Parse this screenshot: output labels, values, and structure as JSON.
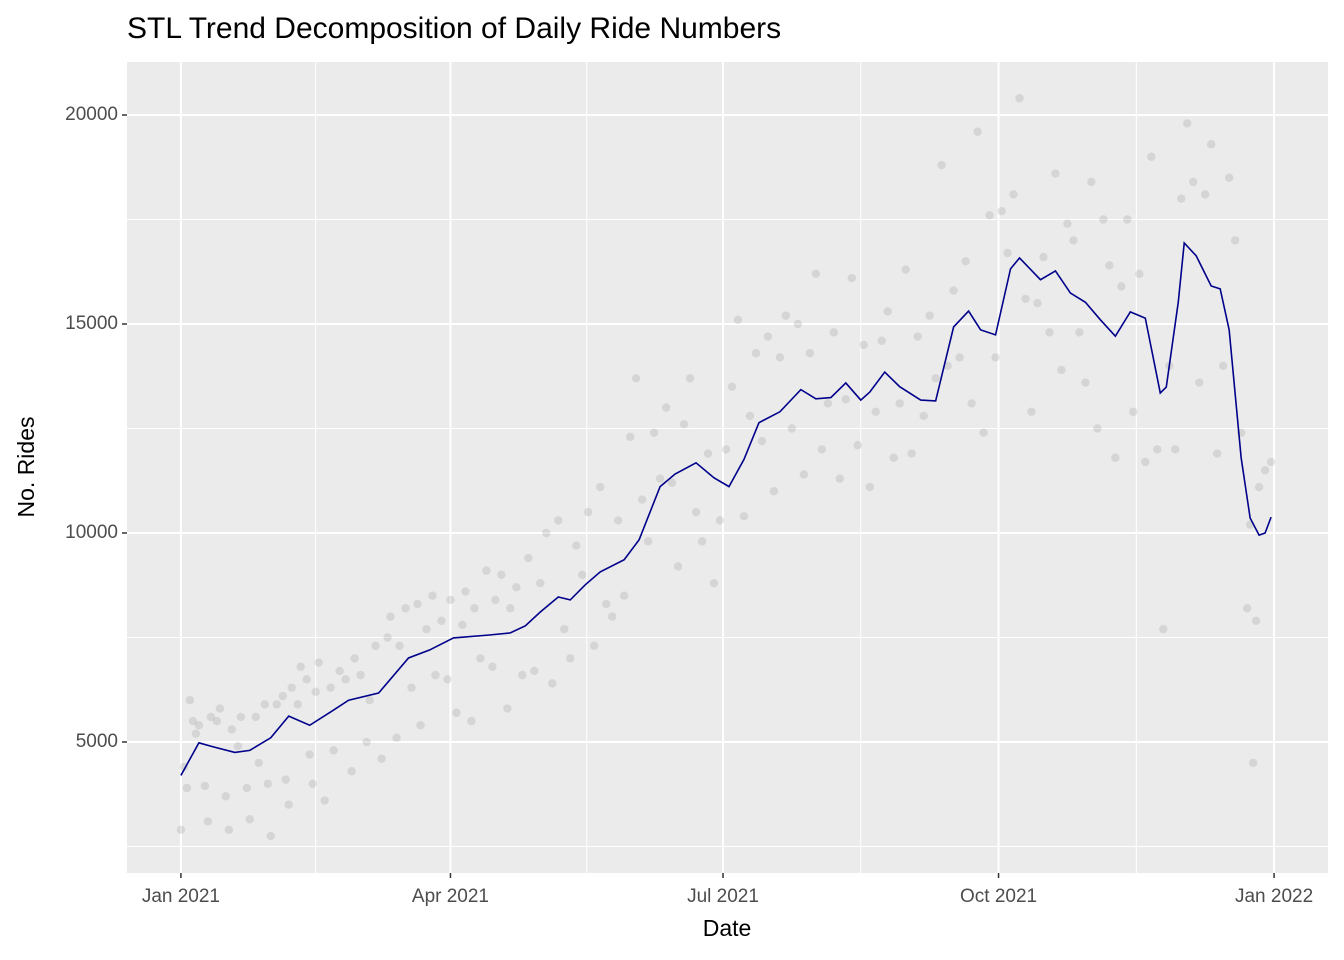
{
  "chart_data": {
    "type": "line",
    "title": "STL Trend Decomposition of Daily Ride Numbers",
    "x_label": "Date",
    "y_label": "No. Rides",
    "xlim": [
      -18,
      383
    ],
    "ylim": [
      1866,
      21268
    ],
    "xticks": [
      {
        "value": 0,
        "label": "Jan 2021"
      },
      {
        "value": 90,
        "label": "Apr 2021"
      },
      {
        "value": 181,
        "label": "Jul 2021"
      },
      {
        "value": 273,
        "label": "Oct 2021"
      },
      {
        "value": 365,
        "label": "Jan 2022"
      }
    ],
    "yticks": [
      5000,
      10000,
      15000,
      20000
    ],
    "grid": true,
    "series": [
      {
        "type": "scatter",
        "color": "#7f7f7f",
        "x": [
          0,
          1,
          2,
          3,
          4,
          5,
          6,
          8,
          9,
          10,
          12,
          13,
          15,
          16,
          17,
          19,
          20,
          22,
          23,
          25,
          26,
          28,
          29,
          30,
          32,
          34,
          35,
          36,
          37,
          39,
          40,
          42,
          43,
          44,
          45,
          46,
          48,
          50,
          51,
          53,
          55,
          57,
          58,
          60,
          62,
          63,
          65,
          67,
          69,
          70,
          72,
          73,
          75,
          77,
          79,
          80,
          82,
          84,
          85,
          87,
          89,
          90,
          92,
          94,
          95,
          97,
          98,
          100,
          102,
          104,
          105,
          107,
          109,
          110,
          112,
          114,
          116,
          118,
          120,
          122,
          124,
          126,
          128,
          130,
          132,
          134,
          136,
          138,
          140,
          142,
          144,
          146,
          148,
          150,
          152,
          154,
          156,
          158,
          160,
          162,
          164,
          166,
          168,
          170,
          172,
          174,
          176,
          178,
          180,
          182,
          184,
          186,
          188,
          190,
          192,
          194,
          196,
          198,
          200,
          202,
          204,
          206,
          208,
          210,
          212,
          214,
          216,
          218,
          220,
          222,
          224,
          226,
          228,
          230,
          232,
          234,
          236,
          238,
          240,
          242,
          244,
          246,
          248,
          250,
          252,
          254,
          256,
          258,
          260,
          262,
          264,
          266,
          268,
          270,
          272,
          274,
          276,
          278,
          280,
          282,
          284,
          286,
          288,
          290,
          292,
          294,
          296,
          298,
          300,
          302,
          304,
          306,
          308,
          310,
          312,
          314,
          316,
          318,
          320,
          322,
          324,
          326,
          328,
          330,
          332,
          334,
          336,
          338,
          340,
          342,
          344,
          346,
          348,
          350,
          352,
          354,
          356,
          357,
          358,
          359,
          360,
          362,
          364
        ],
        "values": [
          2900,
          4400,
          3900,
          6000,
          5500,
          5200,
          5400,
          3950,
          3100,
          5600,
          5500,
          5800,
          3700,
          2900,
          5300,
          4900,
          5600,
          3900,
          3150,
          5600,
          4500,
          5900,
          4000,
          2750,
          5900,
          6100,
          4100,
          3500,
          6300,
          5900,
          6800,
          6500,
          4700,
          4000,
          6200,
          6900,
          3600,
          6300,
          4800,
          6700,
          6500,
          4300,
          7000,
          6600,
          5000,
          6000,
          7300,
          4600,
          7500,
          8000,
          5100,
          7300,
          8200,
          6300,
          8300,
          5400,
          7700,
          8500,
          6600,
          7900,
          6500,
          8400,
          5700,
          7800,
          8600,
          5500,
          8200,
          7000,
          9100,
          6800,
          8400,
          9000,
          5800,
          8200,
          8700,
          6600,
          9400,
          6700,
          8800,
          10000,
          6400,
          10300,
          7700,
          7000,
          9700,
          9000,
          10500,
          7300,
          11100,
          8300,
          8000,
          10300,
          8500,
          12300,
          13700,
          10800,
          9800,
          12400,
          11300,
          13000,
          11200,
          9200,
          12600,
          13700,
          10500,
          9800,
          11900,
          8800,
          10300,
          12000,
          13500,
          15100,
          10400,
          12800,
          14300,
          12200,
          14700,
          11000,
          14200,
          15200,
          12500,
          15000,
          11400,
          14300,
          16200,
          12000,
          13100,
          14800,
          11300,
          13200,
          16100,
          12100,
          14500,
          11100,
          12900,
          14600,
          15300,
          11800,
          13100,
          16300,
          11900,
          14700,
          12800,
          15200,
          13700,
          18800,
          14000,
          15800,
          14200,
          16500,
          13100,
          19600,
          12400,
          17600,
          14200,
          17700,
          16700,
          18100,
          20400,
          15600,
          12900,
          15500,
          16600,
          14800,
          18600,
          13900,
          17400,
          17000,
          14800,
          13600,
          18400,
          12500,
          17500,
          16400,
          11800,
          15900,
          17500,
          12900,
          16200,
          11700,
          19000,
          12000,
          7700,
          14000,
          12000,
          18000,
          19800,
          18400,
          13600,
          18100,
          19300,
          11900,
          14000,
          18500,
          17000,
          12400,
          8200,
          10200,
          4500,
          7900,
          11100,
          11500,
          11700
        ]
      },
      {
        "type": "line",
        "color": "#00008b",
        "x": [
          0,
          6,
          11,
          18,
          23,
          30,
          36,
          43,
          50,
          56,
          66,
          76,
          83,
          91,
          103,
          110,
          115,
          120,
          126,
          130,
          135,
          140,
          148,
          153,
          160,
          165,
          172,
          178,
          183,
          188,
          193,
          200,
          207,
          212,
          217,
          222,
          227,
          230,
          235,
          240,
          247,
          252,
          258,
          263,
          267,
          272,
          277,
          280,
          287,
          292,
          297,
          302,
          307,
          312,
          317,
          322,
          327,
          329,
          333,
          335,
          339,
          344,
          347,
          350,
          354,
          357,
          360,
          362,
          364
        ],
        "values": [
          4200,
          4980,
          4880,
          4750,
          4800,
          5100,
          5620,
          5400,
          5720,
          6000,
          6170,
          7010,
          7200,
          7490,
          7560,
          7610,
          7780,
          8110,
          8470,
          8400,
          8760,
          9070,
          9360,
          9840,
          11110,
          11410,
          11680,
          11320,
          11110,
          11760,
          12640,
          12900,
          13430,
          13210,
          13240,
          13590,
          13180,
          13370,
          13850,
          13500,
          13180,
          13160,
          14930,
          15310,
          14860,
          14740,
          16320,
          16580,
          16060,
          16270,
          15740,
          15520,
          15100,
          14710,
          15290,
          15140,
          13350,
          13490,
          15520,
          16940,
          16630,
          15910,
          15840,
          14860,
          11800,
          10360,
          9950,
          10000,
          10380
        ]
      }
    ]
  }
}
